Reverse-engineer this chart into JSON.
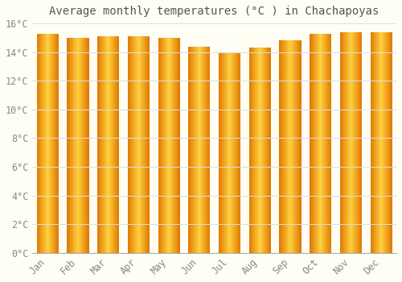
{
  "title": "Average monthly temperatures (°C ) in Chachapoyas",
  "months": [
    "Jan",
    "Feb",
    "Mar",
    "Apr",
    "May",
    "Jun",
    "Jul",
    "Aug",
    "Sep",
    "Oct",
    "Nov",
    "Dec"
  ],
  "values": [
    15.3,
    15.0,
    15.1,
    15.1,
    15.0,
    14.4,
    14.0,
    14.3,
    14.8,
    15.3,
    15.4,
    15.4
  ],
  "ylim": [
    0,
    16
  ],
  "yticks": [
    0,
    2,
    4,
    6,
    8,
    10,
    12,
    14,
    16
  ],
  "bar_color_edge": "#E07800",
  "bar_color_center": "#FFD040",
  "background_color": "#FFFEF5",
  "grid_color": "#DDDDDD",
  "title_fontsize": 10,
  "tick_fontsize": 8.5,
  "bar_width": 0.72
}
